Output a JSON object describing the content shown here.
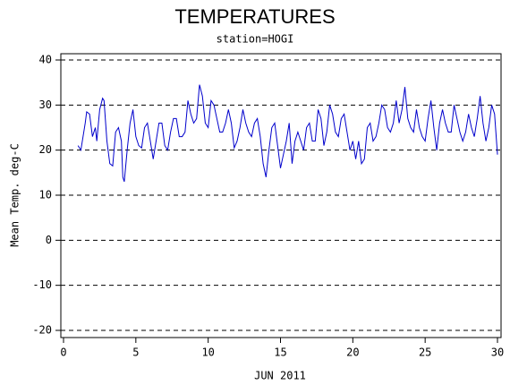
{
  "chart_data": {
    "type": "line",
    "title": "TEMPERATURES",
    "subtitle": "station=HOGI",
    "x_label": "JUN 2011",
    "y_label": "Mean Temp. deg-C",
    "x": [
      1.0,
      1.2,
      1.5,
      1.6,
      1.8,
      2.0,
      2.2,
      2.3,
      2.5,
      2.7,
      2.8,
      3.0,
      3.2,
      3.4,
      3.6,
      3.8,
      4.0,
      4.1,
      4.2,
      4.4,
      4.6,
      4.8,
      5.0,
      5.2,
      5.4,
      5.6,
      5.8,
      6.0,
      6.2,
      6.4,
      6.6,
      6.8,
      7.0,
      7.2,
      7.4,
      7.6,
      7.8,
      8.0,
      8.2,
      8.4,
      8.6,
      8.8,
      9.0,
      9.2,
      9.4,
      9.6,
      9.8,
      10.0,
      10.2,
      10.4,
      10.6,
      10.8,
      11.0,
      11.2,
      11.4,
      11.6,
      11.8,
      12.0,
      12.2,
      12.4,
      12.6,
      12.8,
      13.0,
      13.2,
      13.4,
      13.6,
      13.8,
      14.0,
      14.2,
      14.4,
      14.6,
      14.8,
      15.0,
      15.2,
      15.4,
      15.6,
      15.8,
      16.0,
      16.2,
      16.4,
      16.6,
      16.8,
      17.0,
      17.2,
      17.4,
      17.6,
      17.8,
      18.0,
      18.2,
      18.4,
      18.6,
      18.8,
      19.0,
      19.2,
      19.4,
      19.6,
      19.8,
      20.0,
      20.2,
      20.4,
      20.6,
      20.8,
      21.0,
      21.2,
      21.4,
      21.6,
      21.8,
      22.0,
      22.2,
      22.4,
      22.6,
      22.8,
      23.0,
      23.2,
      23.4,
      23.6,
      23.8,
      24.0,
      24.2,
      24.4,
      24.6,
      24.8,
      25.0,
      25.2,
      25.4,
      25.6,
      25.8,
      26.0,
      26.2,
      26.4,
      26.6,
      26.8,
      27.0,
      27.2,
      27.4,
      27.6,
      27.8,
      28.0,
      28.2,
      28.4,
      28.6,
      28.8,
      29.0,
      29.2,
      29.4,
      29.6,
      29.8,
      30.0
    ],
    "series": [
      {
        "name": "Mean Temp.",
        "color": "#0000cc",
        "values": [
          21,
          20,
          26,
          28.5,
          28,
          23,
          25,
          22,
          29,
          31.5,
          31,
          22,
          17,
          16.5,
          24,
          25,
          22,
          14,
          13,
          20,
          26,
          29,
          23,
          21,
          20.5,
          25,
          26,
          22,
          18,
          22,
          26,
          26,
          21,
          20,
          24,
          27,
          27,
          23,
          23,
          24,
          31,
          28,
          26,
          27,
          34.5,
          32,
          26,
          25,
          31,
          30,
          27,
          24,
          24,
          26,
          29,
          26,
          20.5,
          22,
          25,
          29,
          26,
          24,
          23,
          26,
          27,
          23,
          17,
          14,
          20,
          25,
          26,
          21,
          16,
          19,
          22,
          26,
          17,
          22,
          24,
          22,
          20,
          25,
          26,
          22,
          22,
          29,
          27,
          21,
          24,
          30,
          28,
          24,
          23,
          27,
          28,
          24,
          20,
          22,
          18,
          22,
          17,
          18,
          25,
          26,
          22,
          23,
          26,
          30,
          29,
          25,
          24,
          26,
          31,
          26,
          29,
          34,
          27,
          25,
          24,
          29,
          25,
          23,
          22,
          27,
          31,
          25,
          20,
          26,
          29,
          26,
          24,
          24,
          30,
          27,
          24,
          22,
          24,
          28,
          25,
          23,
          27,
          32,
          26,
          22,
          25,
          30,
          28,
          19
        ]
      }
    ],
    "xlim": [
      0,
      30
    ],
    "xticks": [
      0,
      5,
      10,
      15,
      20,
      25,
      30
    ],
    "ylim": [
      -20,
      40
    ],
    "yticks": [
      -20,
      -10,
      0,
      10,
      20,
      30,
      40
    ],
    "grid": true
  }
}
